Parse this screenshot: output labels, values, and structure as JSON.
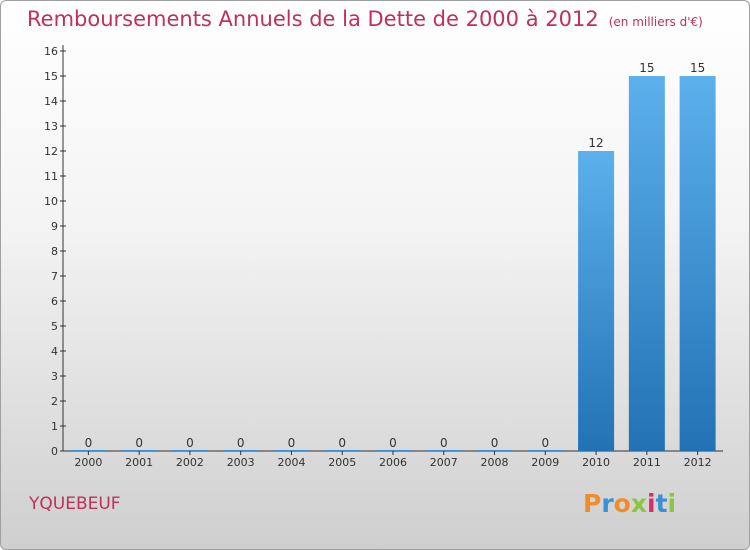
{
  "header": {
    "title": "Remboursements Annuels de la Dette de 2000 à 2012",
    "unit": "(en milliers d'€)"
  },
  "commune": "YQUEBEUF",
  "logo": {
    "text": "Proxiti",
    "colors": [
      "#f28c28",
      "#3a8fd6",
      "#f28c28",
      "#8cc63f",
      "#d6306a",
      "#3a8fd6",
      "#8cc63f"
    ]
  },
  "colors": {
    "title": "#c0305a",
    "bar_top": "#5cb0ec",
    "bar_bottom": "#2272b4"
  },
  "chart_data": {
    "type": "bar",
    "categories": [
      "2000",
      "2001",
      "2002",
      "2003",
      "2004",
      "2005",
      "2006",
      "2007",
      "2008",
      "2009",
      "2010",
      "2011",
      "2012"
    ],
    "values": [
      0,
      0,
      0,
      0,
      0,
      0,
      0,
      0,
      0,
      0,
      12,
      15,
      15
    ],
    "data_labels": [
      "0",
      "0",
      "0",
      "0",
      "0",
      "0",
      "0",
      "0",
      "0",
      "0",
      "12",
      "15",
      "15"
    ],
    "ylim": [
      0,
      16
    ],
    "yticks": [
      "0",
      "1",
      "2",
      "3",
      "4",
      "5",
      "6",
      "7",
      "8",
      "9",
      "10",
      "11",
      "12",
      "13",
      "14",
      "15",
      "16"
    ],
    "title": "Remboursements Annuels de la Dette de 2000 à 2012",
    "xlabel": "",
    "ylabel": "",
    "grid": false
  }
}
